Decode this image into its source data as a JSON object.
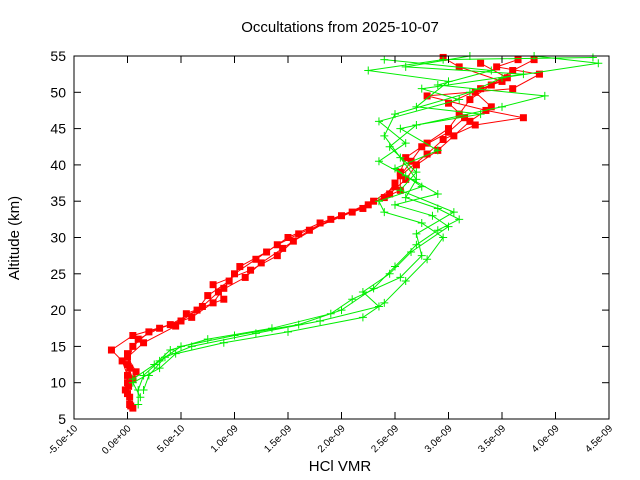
{
  "chart_data": {
    "type": "line",
    "title": "Occultations from 2025-10-07",
    "xlabel": "HCl VMR",
    "ylabel": "Altitude (km)",
    "xlim": [
      -5e-10,
      4.5e-09
    ],
    "ylim": [
      5,
      55
    ],
    "grid": false,
    "legend": "none",
    "x_ticks": [
      "-5.0e-10",
      "0.0e+00",
      "5.0e-10",
      "1.0e-09",
      "1.5e-09",
      "2.0e-09",
      "2.5e-09",
      "3.0e-09",
      "3.5e-09",
      "4.0e-09",
      "4.5e-09"
    ],
    "y_ticks": [
      "5",
      "10",
      "15",
      "20",
      "25",
      "30",
      "35",
      "40",
      "45",
      "50",
      "55"
    ],
    "series": [
      {
        "color": "#ff0000",
        "marker": "square",
        "profiles": [
          [
            [
              5e-11,
              6.5
            ],
            [
              2e-11,
              8
            ],
            [
              0.0,
              10
            ],
            [
              2e-11,
              12
            ],
            [
              0.0,
              14
            ],
            [
              1e-10,
              16
            ],
            [
              3e-10,
              17.5
            ],
            [
              6e-10,
              19
            ],
            [
              8e-10,
              21
            ],
            [
              9e-10,
              23
            ],
            [
              1e-09,
              25
            ],
            [
              1.2e-09,
              27
            ],
            [
              1.4e-09,
              29
            ],
            [
              1.6e-09,
              30.5
            ],
            [
              2e-09,
              33
            ],
            [
              2.3e-09,
              35
            ],
            [
              2.5e-09,
              37
            ],
            [
              2.55e-09,
              39
            ],
            [
              2.6e-09,
              41
            ],
            [
              2.8e-09,
              43
            ],
            [
              3e-09,
              45
            ],
            [
              3.1e-09,
              47
            ],
            [
              3.2e-09,
              49
            ],
            [
              3.4e-09,
              51
            ],
            [
              3.6e-09,
              53
            ],
            [
              3.8e-09,
              54.5
            ]
          ],
          [
            [
              2e-11,
              7
            ],
            [
              -2e-11,
              9
            ],
            [
              0.0,
              11
            ],
            [
              -5e-11,
              13
            ],
            [
              -1.5e-10,
              14.5
            ],
            [
              5e-11,
              16.5
            ],
            [
              4e-10,
              18
            ],
            [
              6.5e-10,
              20
            ],
            [
              7.5e-10,
              22
            ],
            [
              9.5e-10,
              24
            ],
            [
              1.05e-09,
              26
            ],
            [
              1.3e-09,
              28
            ],
            [
              1.5e-09,
              30
            ],
            [
              1.8e-09,
              32
            ],
            [
              2.2e-09,
              34
            ],
            [
              2.45e-09,
              36
            ],
            [
              2.6e-09,
              38
            ],
            [
              2.7e-09,
              40
            ],
            [
              2.9e-09,
              42
            ],
            [
              3.05e-09,
              44
            ],
            [
              3.2e-09,
              46
            ],
            [
              3.4e-09,
              48
            ],
            [
              3.25e-09,
              50
            ],
            [
              3.55e-09,
              52
            ],
            [
              3.3e-09,
              54
            ]
          ],
          [
            [
              3e-11,
              6.8
            ],
            [
              0.0,
              8.5
            ],
            [
              5e-11,
              10.5
            ],
            [
              0.0,
              12.5
            ],
            [
              5e-11,
              15
            ],
            [
              2e-10,
              17
            ],
            [
              5e-10,
              18.5
            ],
            [
              7e-10,
              20.5
            ],
            [
              8.5e-10,
              22.5
            ],
            [
              1.1e-09,
              24.5
            ],
            [
              1.25e-09,
              26.5
            ],
            [
              1.45e-09,
              28.5
            ],
            [
              1.7e-09,
              31
            ],
            [
              2.1e-09,
              33.5
            ],
            [
              2.4e-09,
              35.5
            ],
            [
              2.5e-09,
              37.5
            ],
            [
              2.65e-09,
              40.5
            ],
            [
              2.75e-09,
              42.5
            ],
            [
              3e-09,
              44.5
            ],
            [
              3.15e-09,
              46.5
            ],
            [
              3e-09,
              48.5
            ],
            [
              3.3e-09,
              50.5
            ],
            [
              3.5e-09,
              51.5
            ],
            [
              3.1e-09,
              53.5
            ],
            [
              2.95e-09,
              54.8
            ]
          ],
          [
            [
              1e-11,
              9.5
            ],
            [
              8e-11,
              11.5
            ],
            [
              0.0,
              13.5
            ],
            [
              1.5e-10,
              15.5
            ],
            [
              4.5e-10,
              17.8
            ],
            [
              5.5e-10,
              19.5
            ],
            [
              9e-10,
              21.5
            ],
            [
              8e-10,
              23.5
            ],
            [
              1.15e-09,
              25.5
            ],
            [
              1.4e-09,
              27.5
            ],
            [
              1.55e-09,
              29.5
            ],
            [
              1.9e-09,
              32.5
            ],
            [
              2.25e-09,
              34.5
            ],
            [
              2.55e-09,
              36.5
            ],
            [
              2.55e-09,
              38.5
            ],
            [
              2.8e-09,
              41.5
            ],
            [
              2.95e-09,
              43.5
            ],
            [
              3.25e-09,
              45.5
            ],
            [
              3.7e-09,
              46.5
            ],
            [
              3.35e-09,
              47.5
            ],
            [
              2.8e-09,
              49.5
            ],
            [
              3.6e-09,
              50.5
            ],
            [
              3.85e-09,
              52.5
            ],
            [
              3.45e-09,
              53.5
            ],
            [
              3.65e-09,
              54.5
            ]
          ]
        ]
      },
      {
        "color": "#00ee00",
        "marker": "plus",
        "profiles": [
          [
            [
              1e-10,
              7
            ],
            [
              1e-10,
              9
            ],
            [
              1.5e-10,
              11
            ],
            [
              3e-10,
              13
            ],
            [
              5e-10,
              15
            ],
            [
              1e-09,
              16.5
            ],
            [
              1.6e-09,
              18
            ],
            [
              2e-09,
              20
            ],
            [
              2.3e-09,
              23
            ],
            [
              2.5e-09,
              26
            ],
            [
              2.7e-09,
              29
            ],
            [
              2.9e-09,
              31
            ],
            [
              3.1e-09,
              32.5
            ],
            [
              2.9e-09,
              34
            ],
            [
              2.6e-09,
              35.5
            ],
            [
              2.7e-09,
              38
            ],
            [
              2.55e-09,
              41
            ],
            [
              2.4e-09,
              44
            ],
            [
              2.5e-09,
              47
            ],
            [
              3.2e-09,
              50
            ],
            [
              3.5e-09,
              52
            ],
            [
              4.4e-09,
              54
            ],
            [
              3.8e-09,
              55
            ]
          ],
          [
            [
              1.2e-10,
              8
            ],
            [
              5e-11,
              10
            ],
            [
              3e-10,
              12
            ],
            [
              4.5e-10,
              14
            ],
            [
              9e-10,
              15.5
            ],
            [
              1.5e-09,
              17
            ],
            [
              2.2e-09,
              19
            ],
            [
              2.4e-09,
              21
            ],
            [
              2.6e-09,
              24
            ],
            [
              2.8e-09,
              27
            ],
            [
              2.95e-09,
              30
            ],
            [
              2.75e-09,
              32
            ],
            [
              2.4e-09,
              33.5
            ],
            [
              2.35e-09,
              35
            ],
            [
              2.75e-09,
              37
            ],
            [
              2.5e-09,
              39.5
            ],
            [
              2.9e-09,
              42
            ],
            [
              2.55e-09,
              45
            ],
            [
              3.5e-09,
              48
            ],
            [
              3.9e-09,
              49.5
            ],
            [
              2.9e-09,
              51
            ],
            [
              3.4e-09,
              53
            ],
            [
              2.4e-09,
              54.5
            ]
          ],
          [
            [
              1.5e-10,
              9
            ],
            [
              2e-10,
              11
            ],
            [
              3.5e-10,
              13.5
            ],
            [
              6e-10,
              15
            ],
            [
              1.2e-09,
              16.8
            ],
            [
              1.8e-09,
              18.5
            ],
            [
              2.35e-09,
              20.5
            ],
            [
              2.2e-09,
              22.5
            ],
            [
              2.45e-09,
              25
            ],
            [
              2.65e-09,
              28
            ],
            [
              3e-09,
              31.5
            ],
            [
              2.85e-09,
              33
            ],
            [
              2.5e-09,
              34.5
            ],
            [
              2.9e-09,
              36
            ],
            [
              2.6e-09,
              38.5
            ],
            [
              2.35e-09,
              40.5
            ],
            [
              2.6e-09,
              43
            ],
            [
              2.35e-09,
              46
            ],
            [
              3.1e-09,
              49
            ],
            [
              2.75e-09,
              50.5
            ],
            [
              3.7e-09,
              52.5
            ],
            [
              2.6e-09,
              53.5
            ],
            [
              3.2e-09,
              55
            ]
          ],
          [
            [
              5e-11,
              10.5
            ],
            [
              2.5e-10,
              12.5
            ],
            [
              4e-10,
              14.5
            ],
            [
              7.5e-10,
              16
            ],
            [
              1.35e-09,
              17.5
            ],
            [
              1.9e-09,
              19.5
            ],
            [
              2.1e-09,
              21.5
            ],
            [
              2.55e-09,
              24.5
            ],
            [
              2.75e-09,
              27.5
            ],
            [
              2.7e-09,
              30.5
            ],
            [
              3.05e-09,
              33.5
            ],
            [
              2.55e-09,
              36.5
            ],
            [
              2.7e-09,
              39
            ],
            [
              2.45e-09,
              42.5
            ],
            [
              2.7e-09,
              45.5
            ],
            [
              3.3e-09,
              47
            ],
            [
              2.7e-09,
              48
            ],
            [
              3e-09,
              51.5
            ],
            [
              2.25e-09,
              53
            ],
            [
              2.95e-09,
              54.5
            ],
            [
              4.35e-09,
              54.8
            ]
          ]
        ]
      }
    ]
  }
}
